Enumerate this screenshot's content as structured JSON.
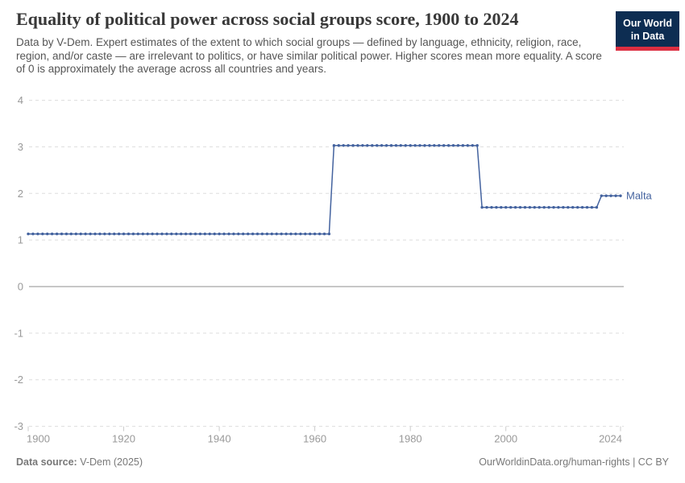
{
  "header": {
    "title": "Equality of political power across social groups score, 1900 to 2024",
    "subtitle": "Data by V-Dem. Expert estimates of the extent to which social groups — defined by language, ethnicity, religion, race, region, and/or caste — are irrelevant to politics, or have similar political power. Higher scores mean more equality. A score of 0 is approximately the average across all countries and years.",
    "logo": {
      "line1": "Our World",
      "line2": "in Data"
    }
  },
  "footer": {
    "source_label": "Data source:",
    "source_value": "V-Dem (2025)",
    "credit": "OurWorldinData.org/human-rights | CC BY"
  },
  "colors": {
    "line": "#44639f",
    "entity_label": "#44639f",
    "grid": "#dddddd",
    "zero_line": "#8f8f8f",
    "tick_label": "#999999",
    "tick_mark": "#cccccc",
    "logo_bg": "#0d2d52",
    "logo_stripe": "#dc2e41",
    "title": "#383838",
    "subtitle": "#555555",
    "footer": "#787878"
  },
  "chart_data": {
    "type": "line",
    "title": "Equality of political power across social groups score, 1900 to 2024",
    "xlabel": "",
    "ylabel": "",
    "xlim": [
      1900,
      2024
    ],
    "ylim": [
      -3,
      4
    ],
    "x_ticks": [
      1900,
      1920,
      1940,
      1960,
      1980,
      2000,
      2024
    ],
    "y_ticks": [
      4,
      3,
      2,
      1,
      0,
      -1,
      -2,
      -3
    ],
    "grid": "dashed horizontal gridlines, solid zero line",
    "markers": "circle marker at every yearly data point",
    "legend_position": "label at end of line",
    "series": [
      {
        "name": "Malta",
        "color": "#44639f",
        "step_segments": [
          {
            "from": 1900,
            "to": 1963,
            "value": 1.13
          },
          {
            "from": 1964,
            "to": 1994,
            "value": 3.03
          },
          {
            "from": 1995,
            "to": 2019,
            "value": 1.7
          },
          {
            "from": 2020,
            "to": 2024,
            "value": 1.95
          }
        ]
      }
    ]
  }
}
